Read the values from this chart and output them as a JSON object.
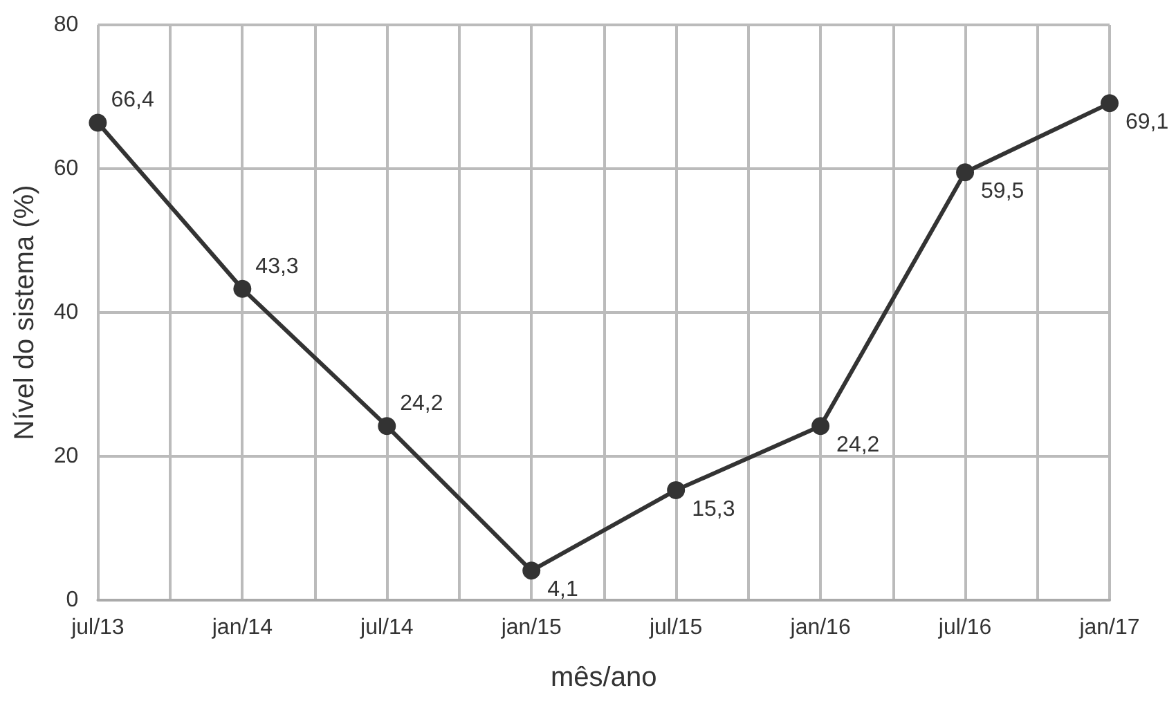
{
  "chart_data": {
    "type": "line",
    "xlabel": "mês/ano",
    "ylabel": "Nível do sistema (%)",
    "categories": [
      "jul/13",
      "jan/14",
      "jul/14",
      "jan/15",
      "jul/15",
      "jan/16",
      "jul/16",
      "jan/17"
    ],
    "series": [
      {
        "color": "#333333",
        "values": [
          66.4,
          43.3,
          24.2,
          4.1,
          15.3,
          24.2,
          59.5,
          69.1
        ],
        "value_labels": [
          "66,4",
          "43,3",
          "24,2",
          "4,1",
          "15,3",
          "24,2",
          "59,5",
          "69,1"
        ]
      }
    ],
    "ylim": [
      0,
      80
    ],
    "yticks": [
      0,
      20,
      40,
      60,
      80
    ],
    "grid": true,
    "marker": "circle",
    "line_style": "solid"
  }
}
